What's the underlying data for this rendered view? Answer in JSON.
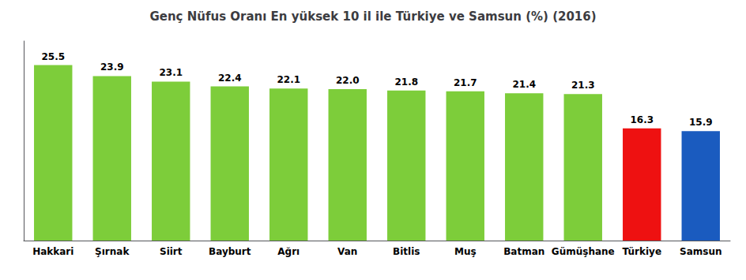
{
  "chart_data": {
    "type": "bar",
    "title": "Genç Nüfus Oranı En yüksek 10 il ile Türkiye ve Samsun (%) (2016)",
    "categories": [
      "Hakkari",
      "Şırnak",
      "Siirt",
      "Bayburt",
      "Ağrı",
      "Van",
      "Bitlis",
      "Muş",
      "Batman",
      "Gümüşhane",
      "Türkiye",
      "Samsun"
    ],
    "values": [
      25.5,
      23.9,
      23.1,
      22.4,
      22.1,
      22.0,
      21.8,
      21.7,
      21.4,
      21.3,
      16.3,
      15.9
    ],
    "value_labels": [
      "25.5",
      "23.9",
      "23.1",
      "22.4",
      "22.1",
      "22.0",
      "21.8",
      "21.7",
      "21.4",
      "21.3",
      "16.3",
      "15.9"
    ],
    "colors": [
      "#7dcd3a",
      "#7dcd3a",
      "#7dcd3a",
      "#7dcd3a",
      "#7dcd3a",
      "#7dcd3a",
      "#7dcd3a",
      "#7dcd3a",
      "#7dcd3a",
      "#7dcd3a",
      "#ee1111",
      "#1a5bbf"
    ],
    "ylim": [
      0,
      29
    ],
    "grid": false,
    "data_labels": true,
    "tick_labels": "x"
  }
}
